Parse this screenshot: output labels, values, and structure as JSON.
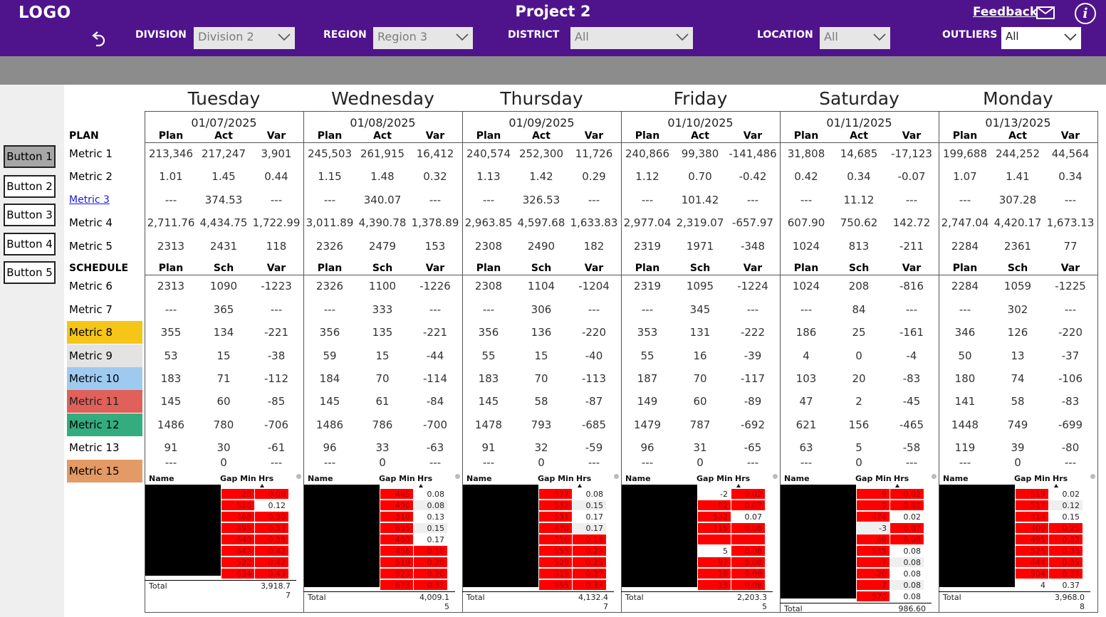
{
  "header": {
    "logo": "LOGO",
    "title": "Project 2",
    "feedback": "Feedback",
    "info_glyph": "i",
    "filters": [
      {
        "label": "DIVISION",
        "value": "Division 2"
      },
      {
        "label": "REGION",
        "value": "Region 3"
      },
      {
        "label": "DISTRICT",
        "value": "All"
      },
      {
        "label": "LOCATION",
        "value": "All"
      },
      {
        "label": "OUTLIERS",
        "value": "All"
      }
    ]
  },
  "side_buttons": [
    "Button 1",
    "Button 2",
    "Button 3",
    "Button 4",
    "Button 5"
  ],
  "sections": {
    "plan": "PLAN",
    "schedule": "SCHEDULE"
  },
  "plan_headers": [
    "Plan",
    "Act",
    "Var"
  ],
  "schedule_headers": [
    "Plan",
    "Sch",
    "Var"
  ],
  "metric_labels": [
    "Metric 1",
    "Metric 2",
    "Metric 3",
    "Metric 4",
    "Metric 5",
    "Metric 6",
    "Metric 7",
    "Metric 8",
    "Metric 9",
    "Metric 10",
    "Metric 11",
    "Metric 12",
    "Metric 13",
    "Metric 15"
  ],
  "metric_colors": {
    "Metric 8": "#f5c518",
    "Metric 9": "#e3e3e3",
    "Metric 10": "#9fcaf0",
    "Metric 11": "#e0615a",
    "Metric 12": "#33ad7f",
    "Metric 15": "#e39a64"
  },
  "mini_table_headers": [
    "Name",
    "Gap Min",
    "Hrs"
  ],
  "mini_total_label": "Total",
  "days": [
    {
      "name": "Tuesday",
      "date": "01/07/2025",
      "rows": [
        [
          "213,346",
          "217,247",
          "3,901"
        ],
        [
          "1.01",
          "1.45",
          "0.44"
        ],
        [
          "---",
          "374.53",
          "---"
        ],
        [
          "2,711.76",
          "4,434.75",
          "1,722.99"
        ],
        [
          "2313",
          "2431",
          "118"
        ],
        [
          "2313",
          "1090",
          "-1223"
        ],
        [
          "---",
          "365",
          "---"
        ],
        [
          "355",
          "134",
          "-221"
        ],
        [
          "53",
          "15",
          "-38"
        ],
        [
          "183",
          "71",
          "-112"
        ],
        [
          "145",
          "60",
          "-85"
        ],
        [
          "1486",
          "780",
          "-706"
        ],
        [
          "91",
          "30",
          "-61"
        ],
        [
          "---",
          "0",
          "---"
        ]
      ],
      "mini": [
        [
          "28",
          "0.08",
          "r",
          "r"
        ],
        [
          "516",
          "0.12",
          "r",
          "w"
        ],
        [
          "468",
          "0.30",
          "r",
          "r"
        ],
        [
          "495",
          "0.33",
          "r",
          "r"
        ],
        [
          "640",
          "0.38",
          "r",
          "r"
        ],
        [
          "642",
          "0.42",
          "r",
          "r"
        ],
        [
          "522",
          "0.42",
          "r",
          "r"
        ],
        [
          "634",
          "0.43",
          "r",
          "r"
        ]
      ],
      "total": "3,918.7",
      "total2": "7"
    },
    {
      "name": "Wednesday",
      "date": "01/08/2025",
      "rows": [
        [
          "245,503",
          "261,915",
          "16,412"
        ],
        [
          "1.15",
          "1.48",
          "0.32"
        ],
        [
          "---",
          "340.07",
          "---"
        ],
        [
          "3,011.89",
          "4,390.78",
          "1,378.89"
        ],
        [
          "2326",
          "2479",
          "153"
        ],
        [
          "2326",
          "1100",
          "-1226"
        ],
        [
          "---",
          "333",
          "---"
        ],
        [
          "356",
          "135",
          "-221"
        ],
        [
          "59",
          "15",
          "-44"
        ],
        [
          "184",
          "70",
          "-114"
        ],
        [
          "145",
          "61",
          "-84"
        ],
        [
          "1486",
          "786",
          "-700"
        ],
        [
          "96",
          "33",
          "-63"
        ],
        [
          "---",
          "0",
          "---"
        ]
      ],
      "mini": [
        [
          "445",
          "0.08",
          "r",
          "w"
        ],
        [
          "490",
          "0.08",
          "r",
          "g"
        ],
        [
          "310",
          "0.13",
          "r",
          "w"
        ],
        [
          "655",
          "0.15",
          "r",
          "g"
        ],
        [
          "460",
          "0.17",
          "r",
          "w"
        ],
        [
          "456",
          "0.18",
          "r",
          "r"
        ],
        [
          "519",
          "0.20",
          "r",
          "r"
        ],
        [
          "523",
          "0.20",
          "r",
          "r"
        ],
        [
          "673",
          "0.32",
          "r",
          "r"
        ]
      ],
      "total": "4,009.1",
      "total2": "5"
    },
    {
      "name": "Thursday",
      "date": "01/09/2025",
      "rows": [
        [
          "240,574",
          "252,300",
          "11,726"
        ],
        [
          "1.13",
          "1.42",
          "0.29"
        ],
        [
          "---",
          "326.53",
          "---"
        ],
        [
          "2,963.85",
          "4,597.68",
          "1,633.83"
        ],
        [
          "2308",
          "2490",
          "182"
        ],
        [
          "2308",
          "1104",
          "-1204"
        ],
        [
          "---",
          "306",
          "---"
        ],
        [
          "356",
          "136",
          "-220"
        ],
        [
          "55",
          "15",
          "-40"
        ],
        [
          "183",
          "70",
          "-113"
        ],
        [
          "145",
          "58",
          "-87"
        ],
        [
          "1478",
          "793",
          "-685"
        ],
        [
          "91",
          "32",
          "-59"
        ],
        [
          "---",
          "0",
          "---"
        ]
      ],
      "mini": [
        [
          "577",
          "0.08",
          "r",
          "w"
        ],
        [
          "532",
          "0.15",
          "r",
          "g"
        ],
        [
          "531",
          "0.17",
          "r",
          "w"
        ],
        [
          "478",
          "0.17",
          "r",
          "g"
        ],
        [
          "310",
          "0.18",
          "r",
          "r"
        ],
        [
          "555",
          "0.23",
          "r",
          "r"
        ],
        [
          "529",
          "0.25",
          "r",
          "r"
        ],
        [
          "319",
          "0.27",
          "r",
          "r"
        ],
        [
          "595",
          "0.33",
          "r",
          "r"
        ]
      ],
      "total": "4,132.4",
      "total2": "7"
    },
    {
      "name": "Friday",
      "date": "01/10/2025",
      "rows": [
        [
          "240,866",
          "99,380",
          "-141,486"
        ],
        [
          "1.12",
          "0.70",
          "-0.42"
        ],
        [
          "---",
          "101.42",
          "---"
        ],
        [
          "2,977.04",
          "2,319.07",
          "-657.97"
        ],
        [
          "2319",
          "1971",
          "-348"
        ],
        [
          "2319",
          "1095",
          "-1224"
        ],
        [
          "---",
          "345",
          "---"
        ],
        [
          "353",
          "131",
          "-222"
        ],
        [
          "55",
          "16",
          "-39"
        ],
        [
          "187",
          "70",
          "-117"
        ],
        [
          "149",
          "60",
          "-89"
        ],
        [
          "1479",
          "787",
          "-692"
        ],
        [
          "96",
          "31",
          "-65"
        ],
        [
          "---",
          "0",
          "---"
        ]
      ],
      "mini": [
        [
          "-2",
          "0.02",
          "w",
          "r"
        ],
        [
          "92",
          "0.07",
          "r",
          "r"
        ],
        [
          "532",
          "0.07",
          "r",
          "w"
        ],
        [
          "115",
          "0.08",
          "r",
          "r"
        ],
        [
          "",
          "",
          "r",
          "r"
        ],
        [
          "5",
          "0.08",
          "w",
          "r"
        ],
        [
          "97",
          "0.08",
          "r",
          "r"
        ],
        [
          "10",
          "0.08",
          "r",
          "r"
        ],
        [
          "13",
          "0.08",
          "r",
          "r"
        ]
      ],
      "total": "2,203.3",
      "total2": "5"
    },
    {
      "name": "Saturday",
      "date": "01/11/2025",
      "rows": [
        [
          "31,808",
          "14,685",
          "-17,123"
        ],
        [
          "0.42",
          "0.34",
          "-0.07"
        ],
        [
          "---",
          "11.12",
          "---"
        ],
        [
          "607.90",
          "750.62",
          "142.72"
        ],
        [
          "1024",
          "813",
          "-211"
        ],
        [
          "1024",
          "208",
          "-816"
        ],
        [
          "---",
          "84",
          "---"
        ],
        [
          "186",
          "25",
          "-161"
        ],
        [
          "4",
          "0",
          "-4"
        ],
        [
          "103",
          "20",
          "-83"
        ],
        [
          "47",
          "2",
          "-45"
        ],
        [
          "621",
          "156",
          "-465"
        ],
        [
          "63",
          "5",
          "-58"
        ],
        [
          "---",
          "0",
          "---"
        ]
      ],
      "mini": [
        [
          "9",
          "0.02",
          "r",
          "r"
        ],
        [
          "9",
          "0.02",
          "r",
          "r"
        ],
        [
          "474",
          "0.02",
          "r",
          "w"
        ],
        [
          "-3",
          "0.07",
          "g",
          "r"
        ],
        [
          "69",
          "0.08",
          "r",
          "r"
        ],
        [
          "535",
          "0.08",
          "r",
          "w"
        ],
        [
          "-7",
          "0.08",
          "r",
          "g"
        ],
        [
          "-20",
          "0.08",
          "r",
          "w"
        ],
        [
          "7",
          "0.08",
          "r",
          "g"
        ],
        [
          "570",
          "0.08",
          "r",
          "w"
        ]
      ],
      "total": "986.60",
      "total2": ""
    },
    {
      "name": "Monday",
      "date": "01/13/2025",
      "rows": [
        [
          "199,688",
          "244,252",
          "44,564"
        ],
        [
          "1.07",
          "1.41",
          "0.34"
        ],
        [
          "---",
          "307.28",
          "---"
        ],
        [
          "2,747.04",
          "4,420.17",
          "1,673.13"
        ],
        [
          "2284",
          "2361",
          "77"
        ],
        [
          "2284",
          "1059",
          "-1225"
        ],
        [
          "---",
          "302",
          "---"
        ],
        [
          "346",
          "126",
          "-220"
        ],
        [
          "50",
          "13",
          "-37"
        ],
        [
          "180",
          "74",
          "-106"
        ],
        [
          "141",
          "58",
          "-83"
        ],
        [
          "1448",
          "749",
          "-699"
        ],
        [
          "119",
          "39",
          "-80"
        ],
        [
          "---",
          "0",
          "---"
        ]
      ],
      "mini": [
        [
          "519",
          "0.02",
          "r",
          "w"
        ],
        [
          "517",
          "0.12",
          "r",
          "g"
        ],
        [
          "414",
          "0.15",
          "r",
          "w"
        ],
        [
          "400",
          "0.25",
          "r",
          "r"
        ],
        [
          "495",
          "0.32",
          "r",
          "r"
        ],
        [
          "525",
          "0.33",
          "r",
          "r"
        ],
        [
          "444",
          "0.35",
          "r",
          "r"
        ],
        [
          "504",
          "0.35",
          "r",
          "r"
        ],
        [
          "4",
          "0.37",
          "w",
          "w"
        ]
      ],
      "total": "3,968.0",
      "total2": "8"
    }
  ]
}
